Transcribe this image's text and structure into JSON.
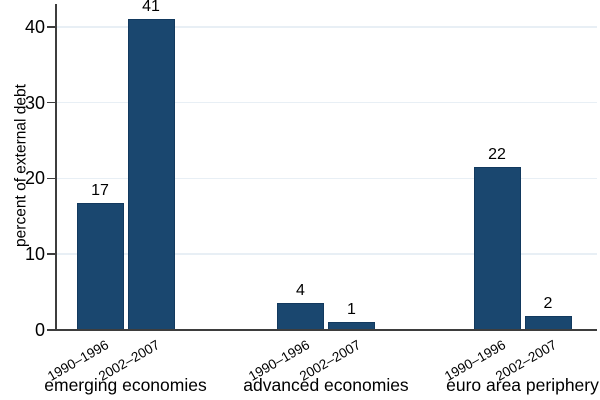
{
  "chart_data": {
    "type": "bar",
    "title": "",
    "ylabel": "percent of external debt",
    "xlabel": "",
    "ylim": [
      0,
      43
    ],
    "yticks": [
      0,
      10,
      20,
      30,
      40
    ],
    "grid": "horizontal-only",
    "legend": "none",
    "categories": [
      "1990–1996",
      "2002–2007"
    ],
    "groups": [
      {
        "label": "emerging economies",
        "bars": [
          {
            "period": "1990–1996",
            "value": 16.7,
            "display": "17"
          },
          {
            "period": "2002–2007",
            "value": 41.0,
            "display": "41"
          }
        ]
      },
      {
        "label": "advanced economies",
        "bars": [
          {
            "period": "1990–1996",
            "value": 3.6,
            "display": "4"
          },
          {
            "period": "2002–2007",
            "value": 1.1,
            "display": "1"
          }
        ]
      },
      {
        "label": "euro area periphery",
        "bars": [
          {
            "period": "1990–1996",
            "value": 21.5,
            "display": "22"
          },
          {
            "period": "2002–2007",
            "value": 1.8,
            "display": "2"
          }
        ]
      }
    ]
  },
  "colors": {
    "bar_fill": "#1a476f",
    "bar_border": "#12395e",
    "gridline": "#e8eff5",
    "axis": "#3d3d3d",
    "text": "#000000",
    "background": "#ffffff"
  }
}
